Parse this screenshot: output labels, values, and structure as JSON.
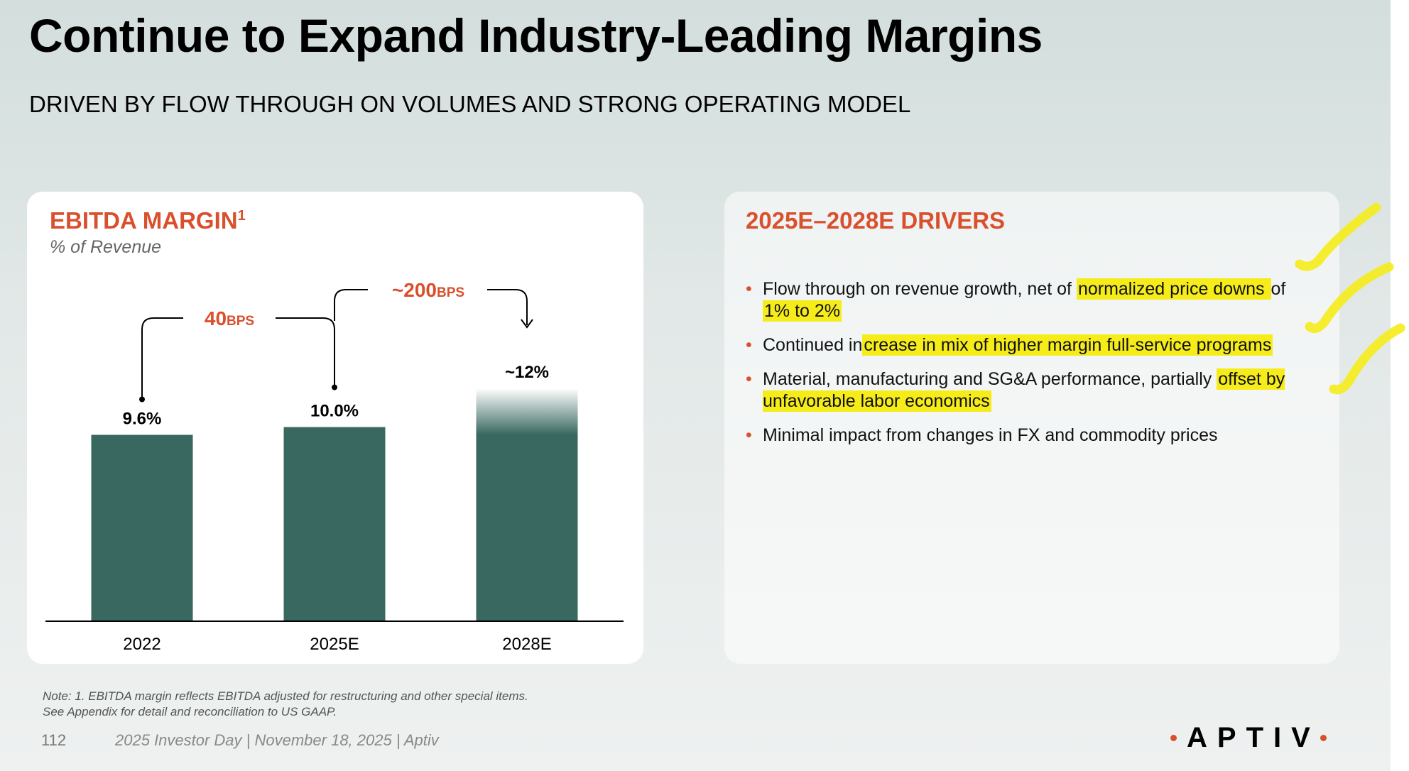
{
  "title": "Continue to Expand Industry-Leading Margins",
  "subtitle": "DRIVEN BY FLOW THROUGH ON VOLUMES AND STRONG OPERATING MODEL",
  "colors": {
    "accent": "#d9502d",
    "bar": "#386860",
    "highlight": "#f5ec1a"
  },
  "chart_data": {
    "type": "bar",
    "title": "EBITDA MARGIN",
    "title_footnote": "1",
    "subtitle": "% of Revenue",
    "categories": [
      "2022",
      "2025E",
      "2028E"
    ],
    "values": [
      9.6,
      10.0,
      12.0
    ],
    "data_labels": [
      "9.6%",
      "10.0%",
      "~12%"
    ],
    "ylim": [
      0,
      12.8
    ],
    "annotations": [
      {
        "from": "2022",
        "to": "2025E",
        "value": "40",
        "unit": "BPS"
      },
      {
        "from": "2025E",
        "to": "2028E",
        "value": "~200",
        "unit": "BPS"
      }
    ]
  },
  "drivers": {
    "heading": "2025E–2028E DRIVERS",
    "bullet_glyph": "•",
    "items": [
      [
        {
          "text": "Flow through on revenue growth, net of ",
          "hl": false
        },
        {
          "text": "normalized price downs ",
          "hl": true
        },
        {
          "text": "of ",
          "hl": false
        },
        {
          "text": "1% to 2%",
          "hl": true
        }
      ],
      [
        {
          "text": "Continued in",
          "hl": false
        },
        {
          "text": "crease in mix of higher margin full-service programs",
          "hl": true
        }
      ],
      [
        {
          "text": "Material, manufacturing and SG&A performance, partially ",
          "hl": false
        },
        {
          "text": "offset by unfavorable labor economics",
          "hl": true
        }
      ],
      [
        {
          "text": "Minimal impact from changes in FX and commodity prices",
          "hl": false
        }
      ]
    ]
  },
  "note": {
    "line1": "Note: 1. EBITDA margin reflects EBITDA adjusted for restructuring and other special items.",
    "line2": "See Appendix for detail and reconciliation to US GAAP."
  },
  "footer": {
    "page_number": "112",
    "text": "2025 Investor Day | November 18, 2025 | Aptiv"
  },
  "logo": {
    "text": "APTIV"
  }
}
